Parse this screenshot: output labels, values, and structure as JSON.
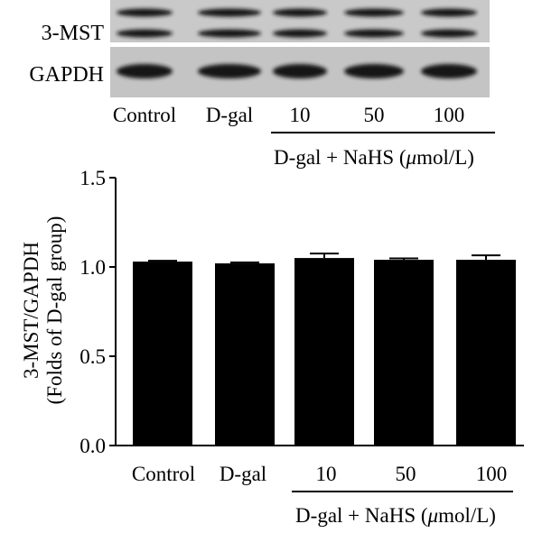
{
  "blot": {
    "rows": [
      {
        "label": "3-MST",
        "bands": 2
      },
      {
        "label": "GAPDH",
        "bands": 1
      }
    ],
    "lanes": [
      "Control",
      "D-gal",
      "10",
      "50",
      "100"
    ],
    "group_label_prefix": "D-gal + NaHS (",
    "group_label_unit": "μ",
    "group_label_suffix": "mol/L)"
  },
  "chart_data": {
    "type": "bar",
    "categories": [
      "Control",
      "D-gal",
      "10",
      "50",
      "100"
    ],
    "values": [
      1.03,
      1.02,
      1.05,
      1.04,
      1.04
    ],
    "errors": [
      0.005,
      0.005,
      0.025,
      0.008,
      0.025
    ],
    "ylabel_line1": "3-MST/GAPDH",
    "ylabel_line2": "(Folds of D-gal group)",
    "ylim": [
      0,
      1.5
    ],
    "yticks": [
      "0.0",
      "0.5",
      "1.0",
      "1.5"
    ],
    "group_label_prefix": "D-gal + NaHS (",
    "group_label_unit": "μ",
    "group_label_suffix": "mol/L)",
    "bar_color": "#000000"
  }
}
